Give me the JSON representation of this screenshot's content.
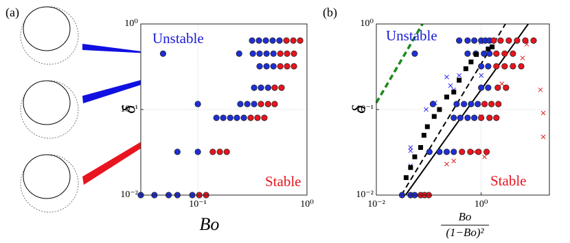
{
  "chart_data": [
    {
      "type": "scatter",
      "panel_label": "(a)",
      "x_label": "Bo",
      "y_label": "δ",
      "x_scale": "log",
      "y_scale": "log",
      "xlim": [
        0.03,
        1
      ],
      "ylim": [
        0.01,
        1
      ],
      "xticks": [
        {
          "value": 0.1,
          "label": "10⁻¹"
        },
        {
          "value": 1,
          "label": "10⁰"
        }
      ],
      "yticks": [
        {
          "value": 0.01,
          "label": "10⁻²"
        },
        {
          "value": 0.1,
          "label": "10⁻¹"
        },
        {
          "value": 1,
          "label": "10⁰"
        }
      ],
      "grid": true,
      "annotations": [
        {
          "text": "Unstable",
          "color": "#1a1ad6"
        },
        {
          "text": "Stable",
          "color": "#e8141e"
        }
      ],
      "series": [
        {
          "marker": "circle",
          "color": "#1f2fd6",
          "x": [
            0.314,
            0.363,
            0.42,
            0.485,
            0.56,
            0.048,
            0.239,
            0.319,
            0.368,
            0.426,
            0.493,
            0.368,
            0.426,
            0.493,
            0.328,
            0.379,
            0.44,
            0.1,
            0.245,
            0.284,
            0.328,
            0.148,
            0.171,
            0.198,
            0.228,
            0.264,
            0.065,
            0.1,
            0.03,
            0.04,
            0.054,
            0.065,
            0.089
          ],
          "y": [
            0.64,
            0.64,
            0.64,
            0.64,
            0.64,
            0.45,
            0.45,
            0.45,
            0.45,
            0.45,
            0.45,
            0.32,
            0.32,
            0.32,
            0.18,
            0.18,
            0.18,
            0.116,
            0.116,
            0.116,
            0.116,
            0.08,
            0.08,
            0.08,
            0.08,
            0.08,
            0.032,
            0.032,
            0.01,
            0.01,
            0.01,
            0.01,
            0.01
          ]
        },
        {
          "marker": "circle",
          "color": "#e8141e",
          "x": [
            0.648,
            0.75,
            0.866,
            0.57,
            0.657,
            0.76,
            0.57,
            0.657,
            0.76,
            0.506,
            0.585,
            0.379,
            0.44,
            0.506,
            0.305,
            0.352,
            0.407,
            0.137,
            0.159,
            0.184,
            0.103,
            0.119
          ],
          "y": [
            0.64,
            0.64,
            0.64,
            0.45,
            0.45,
            0.45,
            0.32,
            0.32,
            0.32,
            0.18,
            0.18,
            0.116,
            0.116,
            0.116,
            0.08,
            0.08,
            0.08,
            0.032,
            0.032,
            0.032,
            0.01,
            0.01
          ]
        }
      ]
    },
    {
      "type": "scatter",
      "panel_label": "(b)",
      "x_label": {
        "numerator": "Bo",
        "denominator": "(1−Bo)²"
      },
      "y_label": "δ",
      "x_scale": "log",
      "y_scale": "log",
      "xlim": [
        0.01,
        20
      ],
      "ylim": [
        0.01,
        1
      ],
      "xticks": [
        {
          "value": 0.01,
          "label": "10⁻²"
        },
        {
          "value": 1,
          "label": "10⁰"
        }
      ],
      "yticks": [
        {
          "value": 0.01,
          "label": "10⁻²"
        },
        {
          "value": 0.1,
          "label": "10⁻¹"
        },
        {
          "value": 1,
          "label": "10⁰"
        }
      ],
      "grid": true,
      "annotations": [
        {
          "text": "Unstable",
          "color": "#1a1ad6"
        },
        {
          "text": "Stable",
          "color": "#e8141e"
        }
      ],
      "series": [
        {
          "marker": "line",
          "style": "dashed",
          "color": "#1a8a1a",
          "x": [
            0.01,
            0.076
          ],
          "y": [
            0.12,
            1
          ]
        },
        {
          "marker": "line",
          "style": "dashed",
          "color": "#000000",
          "x": [
            0.03,
            2.9
          ],
          "y": [
            0.01,
            1
          ]
        },
        {
          "marker": "line",
          "style": "solid",
          "color": "#000000",
          "x": [
            0.036,
            7.9
          ],
          "y": [
            0.01,
            1
          ]
        },
        {
          "marker": "cross",
          "color": "#2a2af0",
          "x": [
            0.045,
            0.045,
            0.045,
            0.089,
            0.131,
            0.22,
            0.26,
            0.38,
            0.3,
            1.0,
            1.0,
            0.74
          ],
          "y": [
            0.036,
            0.033,
            0.022,
            0.1,
            0.12,
            0.24,
            0.19,
            0.25,
            0.17,
            0.61,
            0.25,
            0.64
          ]
        },
        {
          "marker": "cross",
          "color": "#e02020",
          "x": [
            6.15,
            4.03,
            7.38,
            13.5,
            15.3,
            1.0,
            0.74,
            1.16,
            0.3,
            0.22,
            2.48,
            15.3
          ],
          "y": [
            0.4,
            0.33,
            0.58,
            0.17,
            0.091,
            0.083,
            0.032,
            0.028,
            0.025,
            0.023,
            0.2,
            0.048
          ]
        },
        {
          "marker": "circle",
          "color": "#1f2fd6",
          "x": [
            0.38,
            0.55,
            0.74,
            1.0,
            1.2,
            1.44,
            0.054,
            0.55,
            0.79,
            1.13,
            1.44,
            1.0,
            1.36,
            1.0,
            1.36,
            0.12,
            0.34,
            0.47,
            0.64,
            0.86,
            0.3,
            0.4,
            0.55,
            0.74,
            0.103,
            0.16,
            0.22,
            0.3,
            0.031,
            0.045,
            0.054
          ],
          "y": [
            0.64,
            0.64,
            0.64,
            0.64,
            0.64,
            0.64,
            0.45,
            0.45,
            0.45,
            0.45,
            0.45,
            0.32,
            0.32,
            0.18,
            0.18,
            0.116,
            0.116,
            0.116,
            0.116,
            0.116,
            0.08,
            0.08,
            0.08,
            0.08,
            0.032,
            0.032,
            0.032,
            0.032,
            0.01,
            0.01,
            0.01
          ]
        },
        {
          "marker": "circle",
          "color": "#e8141e",
          "x": [
            1.73,
            2.34,
            3.36,
            4.83,
            6.95,
            10,
            1.95,
            2.8,
            4.03,
            1.95,
            2.8,
            4.03,
            5.8,
            2.07,
            2.98,
            1.16,
            1.57,
            2.13,
            1.0,
            1.44,
            1.95,
            0.43,
            0.62,
            0.89,
            1.27,
            0.07,
            0.083,
            0.1
          ],
          "y": [
            0.64,
            0.64,
            0.64,
            0.64,
            0.64,
            0.64,
            0.45,
            0.45,
            0.45,
            0.32,
            0.32,
            0.32,
            0.32,
            0.18,
            0.18,
            0.116,
            0.116,
            0.116,
            0.08,
            0.08,
            0.08,
            0.032,
            0.032,
            0.032,
            0.032,
            0.01,
            0.01,
            0.01
          ]
        },
        {
          "marker": "square",
          "color": "#000000",
          "x": [
            0.037,
            0.045,
            0.054,
            0.07,
            0.081,
            0.094,
            0.127,
            0.16,
            0.22,
            0.3,
            0.38,
            0.51,
            0.64,
            0.81,
            1.36,
            1.62
          ],
          "y": [
            0.016,
            0.021,
            0.028,
            0.036,
            0.05,
            0.063,
            0.083,
            0.1,
            0.14,
            0.16,
            0.22,
            0.3,
            0.36,
            0.44,
            0.51,
            0.54
          ]
        }
      ]
    }
  ]
}
